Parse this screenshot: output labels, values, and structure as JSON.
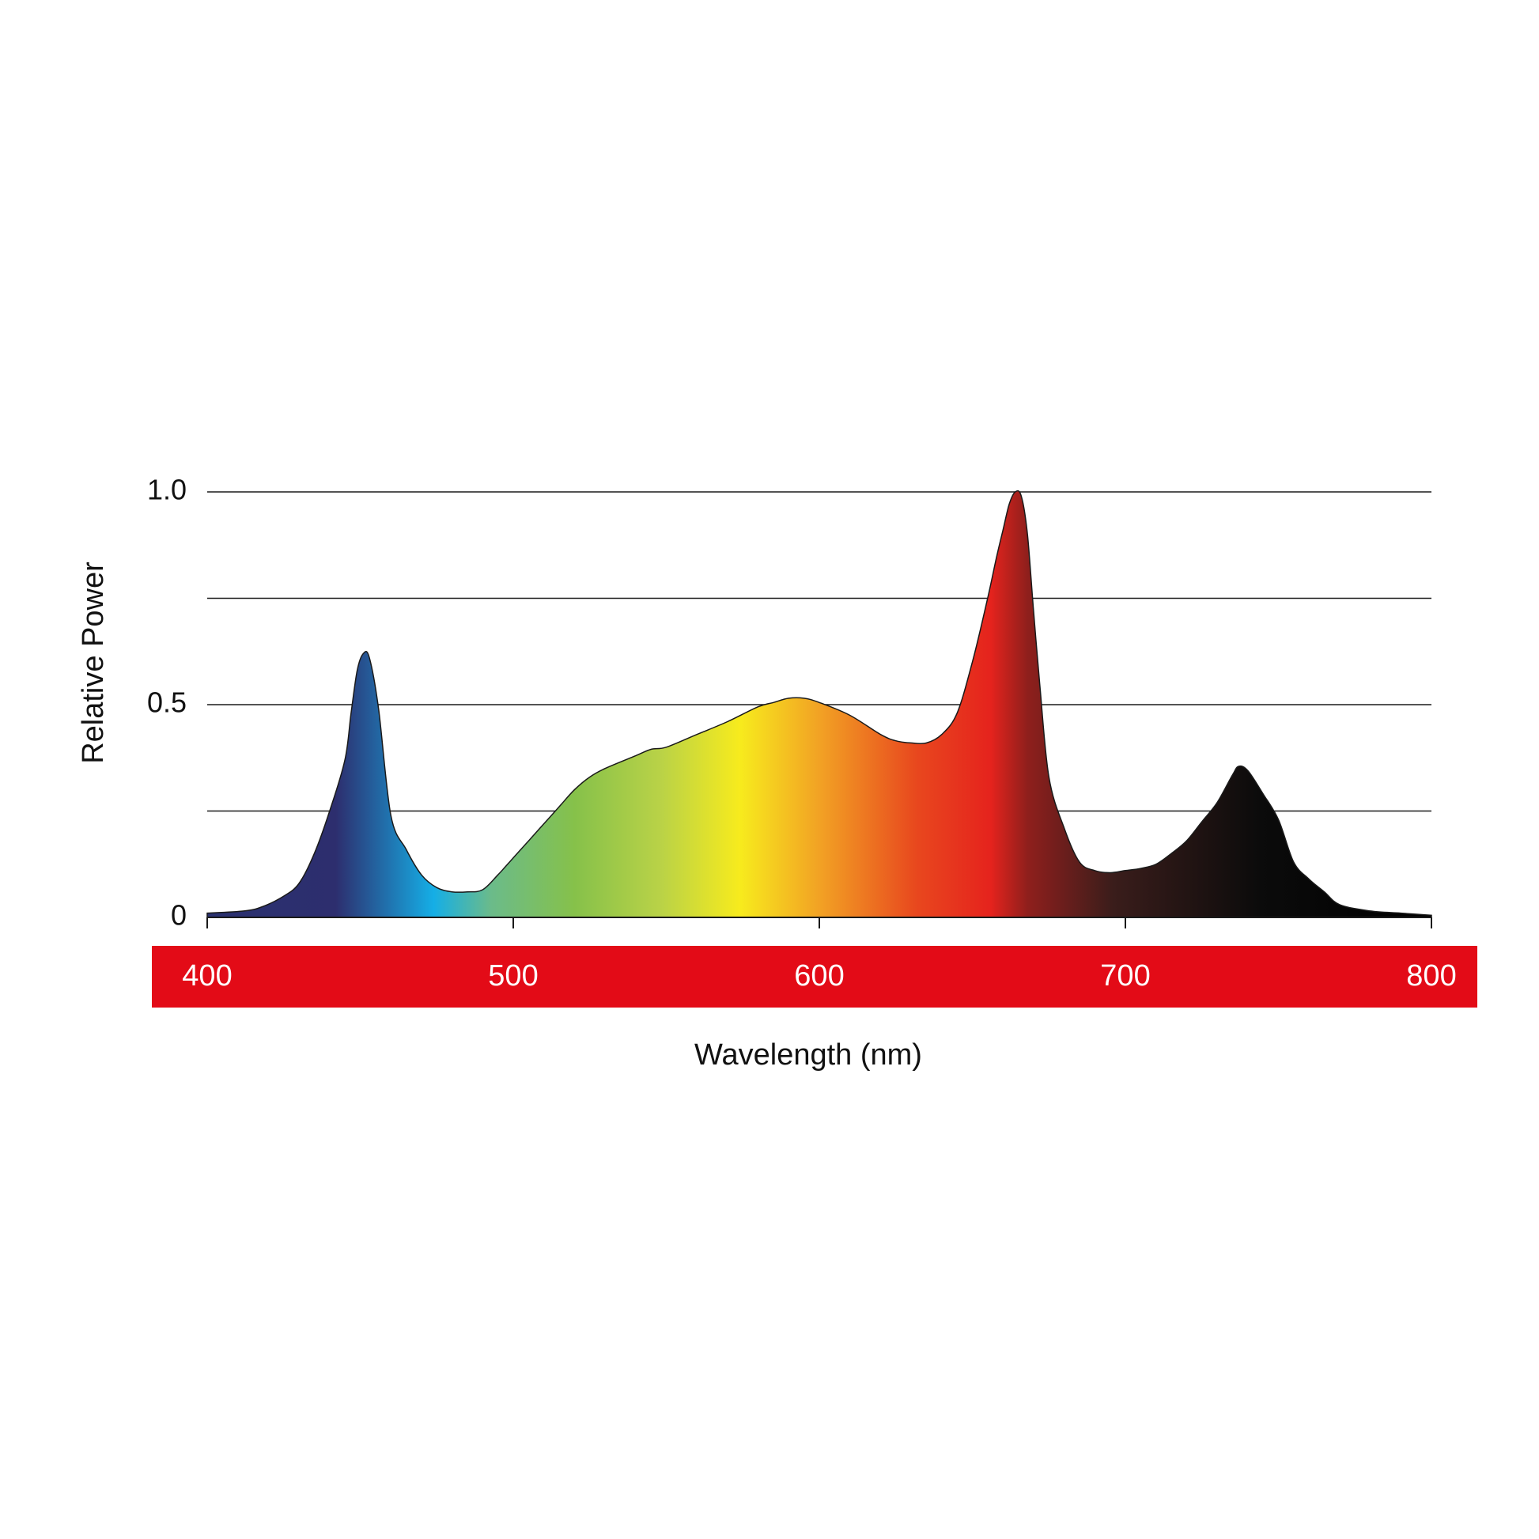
{
  "chart_data": {
    "type": "area",
    "xlabel": "Wavelength (nm)",
    "ylabel": "Relative Power",
    "xlim": [
      400,
      800
    ],
    "ylim": [
      0,
      1.0
    ],
    "y_gridlines": [
      0.25,
      0.5,
      0.75,
      1.0
    ],
    "y_tick_labels": [
      {
        "value": 0,
        "label": "0"
      },
      {
        "value": 0.5,
        "label": "0.5"
      },
      {
        "value": 1.0,
        "label": "1.0"
      }
    ],
    "x_tick_labels": [
      {
        "value": 400,
        "label": "400"
      },
      {
        "value": 500,
        "label": "500"
      },
      {
        "value": 600,
        "label": "600"
      },
      {
        "value": 700,
        "label": "700"
      },
      {
        "value": 800,
        "label": "800"
      }
    ],
    "grid": true,
    "x_band_color": "#e30b17",
    "series": [
      {
        "x": [
          400,
          412,
          418,
          425,
          430,
          435,
          440,
          445,
          447,
          449,
          451,
          453,
          456,
          460,
          465,
          470,
          475,
          480,
          485,
          490,
          495,
          500,
          505,
          510,
          515,
          520,
          525,
          530,
          540,
          545,
          550,
          560,
          570,
          580,
          585,
          590,
          595,
          600,
          610,
          620,
          625,
          630,
          635,
          640,
          645,
          650,
          655,
          658,
          660,
          662,
          664,
          666,
          668,
          670,
          672,
          675,
          680,
          685,
          690,
          695,
          700,
          705,
          710,
          715,
          720,
          725,
          730,
          735,
          737,
          740,
          745,
          750,
          755,
          760,
          765,
          770,
          780,
          790,
          800
        ],
        "y": [
          0.01,
          0.015,
          0.025,
          0.05,
          0.08,
          0.15,
          0.25,
          0.37,
          0.48,
          0.58,
          0.62,
          0.61,
          0.49,
          0.24,
          0.16,
          0.1,
          0.07,
          0.06,
          0.06,
          0.065,
          0.1,
          0.14,
          0.18,
          0.22,
          0.26,
          0.3,
          0.33,
          0.35,
          0.38,
          0.395,
          0.4,
          0.43,
          0.46,
          0.495,
          0.505,
          0.515,
          0.515,
          0.505,
          0.475,
          0.43,
          0.415,
          0.41,
          0.41,
          0.43,
          0.48,
          0.6,
          0.75,
          0.85,
          0.91,
          0.97,
          1.0,
          0.99,
          0.9,
          0.72,
          0.55,
          0.33,
          0.21,
          0.13,
          0.11,
          0.105,
          0.11,
          0.115,
          0.125,
          0.15,
          0.18,
          0.225,
          0.27,
          0.335,
          0.355,
          0.345,
          0.29,
          0.23,
          0.13,
          0.09,
          0.06,
          0.03,
          0.015,
          0.01,
          0.005
        ]
      }
    ],
    "gradient_colors": [
      "#2a3170",
      "#2d2e6e",
      "#15aee6",
      "#6bbb8a",
      "#86c14a",
      "#b9d247",
      "#f7eb1d",
      "#f2a224",
      "#e8471e",
      "#e5231d",
      "#8f1f1c",
      "#3a1d1b",
      "#0b0b0b",
      "#000000"
    ]
  }
}
